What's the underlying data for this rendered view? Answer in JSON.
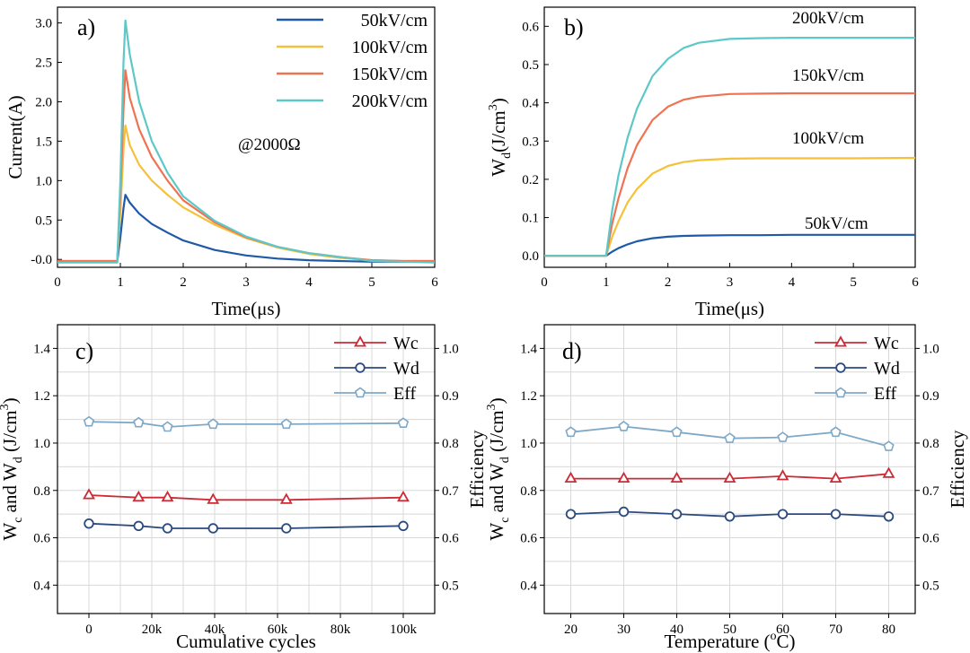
{
  "chart_data": [
    {
      "panel": "a)",
      "type": "line",
      "xlabel": "Time(μs)",
      "ylabel": "Current(A)",
      "xlim": [
        0,
        6
      ],
      "ylim": [
        -0.1,
        3.2
      ],
      "x_ticks": [
        "0",
        "1",
        "2",
        "3",
        "4",
        "5",
        "6"
      ],
      "y_ticks": [
        "-0.0",
        "0.5",
        "1.0",
        "1.5",
        "2.0",
        "2.5",
        "3.0"
      ],
      "annotation": "@2000Ω",
      "legend_position": "top-right",
      "x": [
        0,
        0.5,
        0.95,
        1.0,
        1.05,
        1.08,
        1.15,
        1.3,
        1.5,
        1.75,
        2.0,
        2.5,
        3.0,
        3.5,
        4.0,
        4.5,
        5.0,
        5.5,
        6.0
      ],
      "series": [
        {
          "name": "50kV/cm",
          "color": "#1f5aa6",
          "values": [
            -0.03,
            -0.03,
            -0.03,
            0.28,
            0.65,
            0.82,
            0.72,
            0.58,
            0.45,
            0.34,
            0.24,
            0.12,
            0.05,
            0.01,
            -0.01,
            -0.02,
            -0.03,
            -0.03,
            -0.03
          ]
        },
        {
          "name": "100kV/cm",
          "color": "#f5c13b",
          "values": [
            -0.02,
            -0.02,
            -0.02,
            0.6,
            1.4,
            1.7,
            1.45,
            1.2,
            1.0,
            0.82,
            0.66,
            0.44,
            0.27,
            0.15,
            0.07,
            0.02,
            -0.01,
            -0.02,
            -0.02
          ]
        },
        {
          "name": "150kV/cm",
          "color": "#ef7350",
          "values": [
            -0.02,
            -0.02,
            -0.02,
            0.8,
            1.9,
            2.4,
            2.05,
            1.65,
            1.3,
            1.0,
            0.75,
            0.47,
            0.28,
            0.16,
            0.08,
            0.03,
            -0.01,
            -0.02,
            -0.02
          ]
        },
        {
          "name": "200kV/cm",
          "color": "#5ec8c8",
          "values": [
            -0.04,
            -0.04,
            -0.04,
            1.0,
            2.5,
            3.03,
            2.6,
            2.0,
            1.5,
            1.1,
            0.8,
            0.49,
            0.29,
            0.16,
            0.08,
            0.03,
            -0.02,
            -0.03,
            -0.04
          ]
        }
      ]
    },
    {
      "panel": "b)",
      "type": "line",
      "xlabel": "Time(μs)",
      "ylabel": "Wd(J/cm3)",
      "ylabel_main": "W",
      "ylabel_sub": "d",
      "ylabel_rest": "(J/cm",
      "ylabel_sup": "3",
      "ylabel_close": ")",
      "xlim": [
        0,
        6
      ],
      "ylim": [
        -0.03,
        0.65
      ],
      "x_ticks": [
        "0",
        "1",
        "2",
        "3",
        "4",
        "5",
        "6"
      ],
      "y_ticks": [
        "0.0",
        "0.1",
        "0.2",
        "0.3",
        "0.4",
        "0.5",
        "0.6"
      ],
      "x": [
        0,
        0.5,
        1.0,
        1.1,
        1.2,
        1.35,
        1.5,
        1.75,
        2.0,
        2.25,
        2.5,
        3.0,
        3.5,
        4.0,
        5.0,
        6.0
      ],
      "series": [
        {
          "name": "50kV/cm",
          "color": "#1f5aa6",
          "values": [
            0,
            0,
            0,
            0.011,
            0.02,
            0.03,
            0.038,
            0.046,
            0.05,
            0.052,
            0.053,
            0.054,
            0.054,
            0.055,
            0.055,
            0.055
          ]
        },
        {
          "name": "100kV/cm",
          "color": "#f5c13b",
          "values": [
            0,
            0,
            0,
            0.05,
            0.09,
            0.14,
            0.175,
            0.215,
            0.235,
            0.245,
            0.25,
            0.254,
            0.255,
            0.255,
            0.255,
            0.256
          ]
        },
        {
          "name": "150kV/cm",
          "color": "#ef7350",
          "values": [
            0,
            0,
            0,
            0.085,
            0.15,
            0.23,
            0.29,
            0.355,
            0.39,
            0.408,
            0.416,
            0.423,
            0.424,
            0.425,
            0.425,
            0.425
          ]
        },
        {
          "name": "200kV/cm",
          "color": "#5ec8c8",
          "values": [
            0,
            0,
            0,
            0.12,
            0.21,
            0.31,
            0.385,
            0.47,
            0.515,
            0.543,
            0.557,
            0.567,
            0.569,
            0.57,
            0.57,
            0.57
          ]
        }
      ],
      "series_labels": [
        "50kV/cm",
        "100kV/cm",
        "150kV/cm",
        "200kV/cm"
      ]
    },
    {
      "panel": "c)",
      "type": "line",
      "xlabel": "Cumulative cycles",
      "ylabel": "Wc and Wd (J/cm3)",
      "ylabel_parts": [
        "W",
        "c",
        " and W",
        "d",
        " (J/cm",
        "3",
        ")"
      ],
      "y2label": "Efficiency",
      "xlim": [
        -10000,
        110000
      ],
      "ylim": [
        0.28,
        1.5
      ],
      "y2lim": [
        0.44,
        1.05
      ],
      "x_ticks": [
        "0",
        "20k",
        "40k",
        "60k",
        "80k",
        "100k"
      ],
      "x_tick_values": [
        0,
        20000,
        40000,
        60000,
        80000,
        100000
      ],
      "y_ticks": [
        "0.4",
        "0.6",
        "0.8",
        "1.0",
        "1.2",
        "1.4"
      ],
      "y2_ticks": [
        "0.5",
        "0.6",
        "0.7",
        "0.8",
        "0.9",
        "1.0"
      ],
      "x": [
        0,
        15800,
        25000,
        39500,
        62800,
        100000
      ],
      "series": [
        {
          "name": "Wc",
          "color": "#cc2b36",
          "marker": "triangle",
          "axis": "left",
          "values": [
            0.78,
            0.77,
            0.77,
            0.76,
            0.76,
            0.77
          ]
        },
        {
          "name": "Wd",
          "color": "#2b4a7e",
          "marker": "circle",
          "axis": "left",
          "values": [
            0.66,
            0.65,
            0.64,
            0.64,
            0.64,
            0.65
          ]
        },
        {
          "name": "Eff",
          "color": "#7fa8c6",
          "marker": "pentagon",
          "axis": "right",
          "values": [
            0.845,
            0.843,
            0.834,
            0.84,
            0.84,
            0.842
          ]
        }
      ],
      "legend_position": "top-right"
    },
    {
      "panel": "d)",
      "type": "line",
      "xlabel": "Temperature (oC)",
      "xlabel_parts": [
        "Temperature (",
        "o",
        "C)"
      ],
      "ylabel": "Wc and Wd (J/cm3)",
      "ylabel_parts": [
        "W",
        "c",
        " and W",
        "d",
        " (J/cm",
        "3",
        ")"
      ],
      "y2label": "Efficiency",
      "xlim": [
        15,
        85
      ],
      "ylim": [
        0.28,
        1.5
      ],
      "y2lim": [
        0.44,
        1.05
      ],
      "x_ticks": [
        "20",
        "30",
        "40",
        "50",
        "60",
        "70",
        "80"
      ],
      "x_tick_values": [
        20,
        30,
        40,
        50,
        60,
        70,
        80
      ],
      "y_ticks": [
        "0.4",
        "0.6",
        "0.8",
        "1.0",
        "1.2",
        "1.4"
      ],
      "y2_ticks": [
        "0.5",
        "0.6",
        "0.7",
        "0.8",
        "0.9",
        "1.0"
      ],
      "x": [
        20,
        30,
        40,
        50,
        60,
        70,
        80
      ],
      "series": [
        {
          "name": "Wc",
          "color": "#cc2b36",
          "marker": "triangle",
          "axis": "left",
          "values": [
            0.85,
            0.85,
            0.85,
            0.85,
            0.86,
            0.85,
            0.87
          ]
        },
        {
          "name": "Wd",
          "color": "#2b4a7e",
          "marker": "circle",
          "axis": "left",
          "values": [
            0.7,
            0.71,
            0.7,
            0.69,
            0.7,
            0.7,
            0.69
          ]
        },
        {
          "name": "Eff",
          "color": "#7fa8c6",
          "marker": "pentagon",
          "axis": "right",
          "values": [
            0.823,
            0.835,
            0.823,
            0.81,
            0.812,
            0.823,
            0.793
          ]
        }
      ],
      "legend_position": "top-right"
    }
  ]
}
